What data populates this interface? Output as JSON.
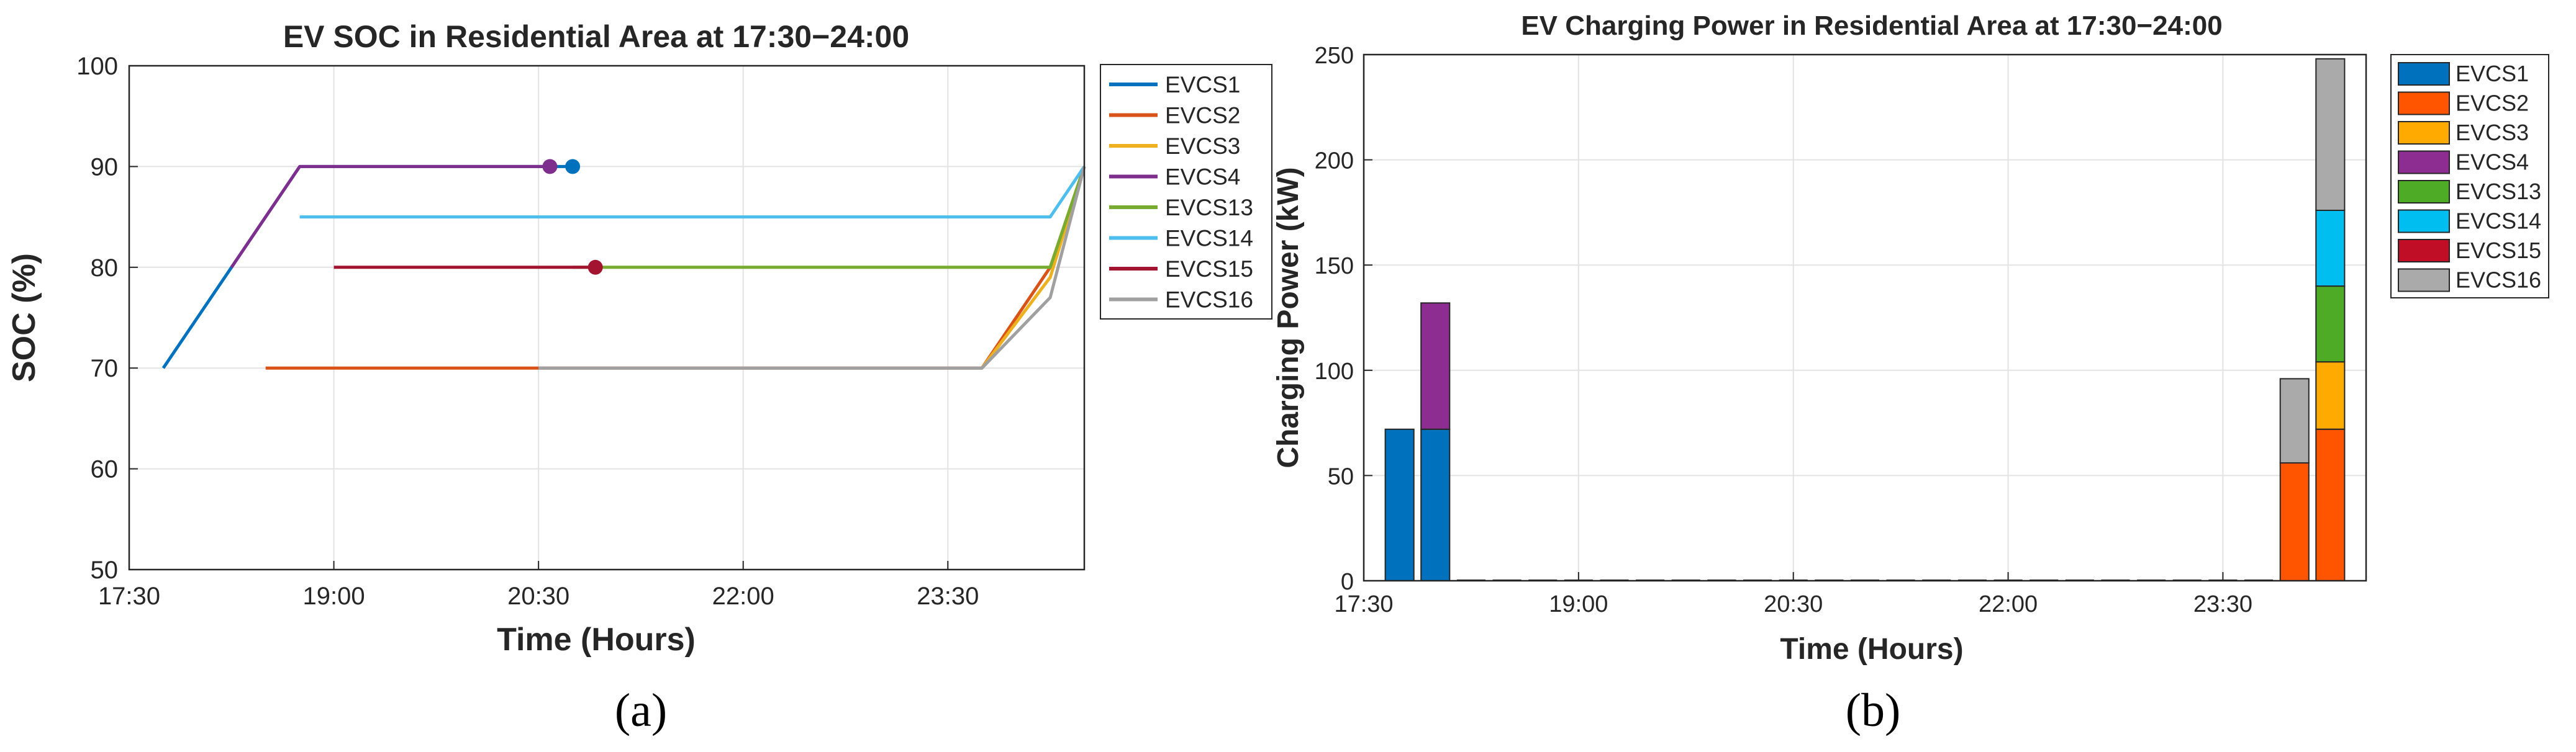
{
  "chart_data": [
    {
      "type": "line",
      "title": "EV SOC in Residential Area at 17:30−24:00",
      "xlabel": "Time (Hours)",
      "ylabel": "SOC (%)",
      "xlim": [
        "17:30",
        "24:30"
      ],
      "ylim": [
        50,
        100
      ],
      "xticks": [
        "17:30",
        "19:00",
        "20:30",
        "22:00",
        "23:30"
      ],
      "yticks": [
        50,
        60,
        70,
        80,
        90,
        100
      ],
      "grid": true,
      "legend_position": "outside-right",
      "series": [
        {
          "name": "EVCS1",
          "color": "#0072BD",
          "points": [
            [
              "17:45",
              70
            ],
            [
              "18:15",
              80
            ],
            [
              "18:30",
              85
            ],
            [
              "18:45",
              90
            ],
            [
              "20:45",
              90
            ]
          ],
          "marker_at": [
            "20:45",
            90
          ]
        },
        {
          "name": "EVCS2",
          "color": "#D95319",
          "points": [
            [
              "18:30",
              70
            ],
            [
              "23:45",
              70
            ],
            [
              "24:15",
              80
            ],
            [
              "24:30",
              90
            ]
          ]
        },
        {
          "name": "EVCS3",
          "color": "#EDB120",
          "points": [
            [
              "23:45",
              70
            ],
            [
              "24:15",
              79
            ],
            [
              "24:30",
              90
            ]
          ]
        },
        {
          "name": "EVCS4",
          "color": "#7E2F8E",
          "points": [
            [
              "18:15",
              80
            ],
            [
              "18:45",
              90
            ],
            [
              "20:35",
              90
            ]
          ],
          "marker_at": [
            "20:35",
            90
          ]
        },
        {
          "name": "EVCS13",
          "color": "#77AC30",
          "points": [
            [
              "20:45",
              80
            ],
            [
              "24:15",
              80
            ],
            [
              "24:30",
              90
            ]
          ]
        },
        {
          "name": "EVCS14",
          "color": "#4DBEEE",
          "points": [
            [
              "18:45",
              85
            ],
            [
              "24:15",
              85
            ],
            [
              "24:30",
              90
            ]
          ]
        },
        {
          "name": "EVCS15",
          "color": "#A2142F",
          "points": [
            [
              "19:00",
              80
            ],
            [
              "20:55",
              80
            ]
          ],
          "marker_at": [
            "20:55",
            80
          ]
        },
        {
          "name": "EVCS16",
          "color": "#A0A0A0",
          "points": [
            [
              "20:30",
              70
            ],
            [
              "23:45",
              70
            ],
            [
              "24:15",
              77
            ],
            [
              "24:30",
              90
            ]
          ]
        }
      ]
    },
    {
      "type": "bar",
      "stacked": true,
      "title": "EV Charging Power in Residential Area at 17:30−24:00",
      "xlabel": "Time (Hours)",
      "ylabel": "Charging Power (kW)",
      "xlim": [
        "17:30",
        "24:30"
      ],
      "ylim": [
        0,
        250
      ],
      "xticks": [
        "17:30",
        "19:00",
        "20:30",
        "22:00",
        "23:30"
      ],
      "yticks": [
        0,
        50,
        100,
        150,
        200,
        250
      ],
      "grid": true,
      "legend_position": "outside-right",
      "bar_times": [
        "17:45",
        "18:00",
        "18:15",
        "18:30",
        "18:45",
        "19:00",
        "19:15",
        "19:30",
        "19:45",
        "20:00",
        "20:15",
        "20:30",
        "20:45",
        "21:00",
        "21:15",
        "21:30",
        "21:45",
        "22:00",
        "22:15",
        "22:30",
        "22:45",
        "23:00",
        "23:15",
        "23:30",
        "23:45",
        "24:00",
        "24:15"
      ],
      "series": [
        {
          "name": "EVCS1",
          "color": "#0072BD",
          "values": [
            72,
            72,
            0,
            0,
            0,
            0,
            0,
            0,
            0,
            0,
            0,
            0,
            0,
            0,
            0,
            0,
            0,
            0,
            0,
            0,
            0,
            0,
            0,
            0,
            0,
            0,
            0
          ]
        },
        {
          "name": "EVCS2",
          "color": "#FF5500",
          "values": [
            0,
            0,
            0,
            0,
            0,
            0,
            0,
            0,
            0,
            0,
            0,
            0,
            0,
            0,
            0,
            0,
            0,
            0,
            0,
            0,
            0,
            0,
            0,
            0,
            0,
            56,
            72
          ]
        },
        {
          "name": "EVCS3",
          "color": "#FFAA00",
          "values": [
            0,
            0,
            0,
            0,
            0,
            0,
            0,
            0,
            0,
            0,
            0,
            0,
            0,
            0,
            0,
            0,
            0,
            0,
            0,
            0,
            0,
            0,
            0,
            0,
            0,
            0,
            32
          ]
        },
        {
          "name": "EVCS4",
          "color": "#8E2D91",
          "values": [
            0,
            60,
            0,
            0,
            0,
            0,
            0,
            0,
            0,
            0,
            0,
            0,
            0,
            0,
            0,
            0,
            0,
            0,
            0,
            0,
            0,
            0,
            0,
            0,
            0,
            0,
            0
          ]
        },
        {
          "name": "EVCS13",
          "color": "#4DAB26",
          "values": [
            0,
            0,
            0,
            0,
            0,
            0,
            0,
            0,
            0,
            0,
            0,
            0,
            0,
            0,
            0,
            0,
            0,
            0,
            0,
            0,
            0,
            0,
            0,
            0,
            0,
            0,
            36
          ]
        },
        {
          "name": "EVCS14",
          "color": "#00BFF0",
          "values": [
            0,
            0,
            0,
            0,
            0,
            0,
            0,
            0,
            0,
            0,
            0,
            0,
            0,
            0,
            0,
            0,
            0,
            0,
            0,
            0,
            0,
            0,
            0,
            0,
            0,
            0,
            36
          ]
        },
        {
          "name": "EVCS15",
          "color": "#C00E27",
          "values": [
            0,
            0,
            0,
            0,
            0,
            0,
            0,
            0,
            0,
            0,
            0,
            0,
            0,
            0,
            0,
            0,
            0,
            0,
            0,
            0,
            0,
            0,
            0,
            0,
            0,
            0,
            0
          ]
        },
        {
          "name": "EVCS16",
          "color": "#AAAAAA",
          "values": [
            0,
            0,
            0,
            0,
            0,
            0,
            0,
            0,
            0,
            0,
            0,
            0,
            0,
            0,
            0,
            0,
            0,
            0,
            0,
            0,
            0,
            0,
            0,
            0,
            0,
            40,
            72
          ]
        }
      ]
    }
  ],
  "captions": [
    "(a)",
    "(b)"
  ]
}
